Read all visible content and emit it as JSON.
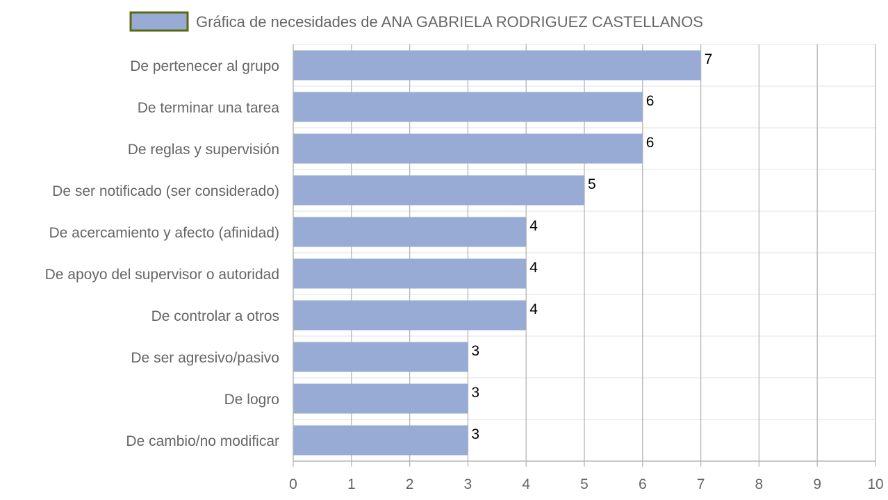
{
  "chart_data": {
    "type": "bar",
    "orientation": "horizontal",
    "series": [
      {
        "name": "Gráfica de necesidades de ANA GABRIELA RODRIGUEZ CASTELLANOS",
        "values": [
          7,
          6,
          6,
          5,
          4,
          4,
          4,
          3,
          3,
          3
        ]
      }
    ],
    "categories": [
      "De pertenecer al grupo",
      "De terminar una tarea",
      "De reglas y supervisión",
      "De ser notificado (ser considerado)",
      "De acercamiento y afecto (afinidad)",
      "De apoyo del supervisor o autoridad",
      "De controlar a otros",
      "De ser agresivo/pasivo",
      "De logro",
      "De cambio/no modificar"
    ],
    "xlim": [
      0,
      10
    ],
    "xticks": [
      "0",
      "1",
      "2",
      "3",
      "4",
      "5",
      "6",
      "7",
      "8",
      "9",
      "10"
    ],
    "grid": true,
    "legend_position": "top",
    "data_labels": true,
    "colors": {
      "bar": "#97abd5",
      "legend_border": "#5a6a10",
      "grid_major": "#b5b5b5",
      "grid_minor": "#e2e2e2",
      "text": "#666666",
      "value_text": "#000000"
    }
  }
}
